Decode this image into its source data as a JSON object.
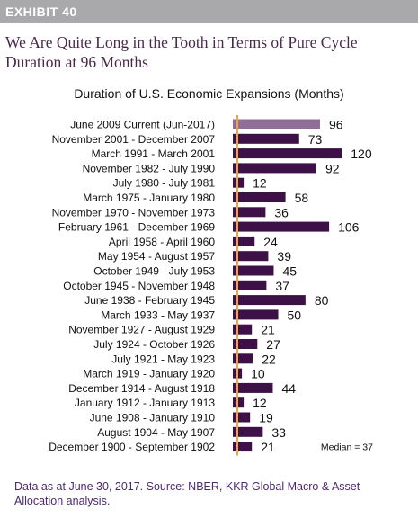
{
  "header": {
    "exhibit": "EXHIBIT 40",
    "headline": "We Are Quite Long in the Tooth in Terms of Pure Cycle Duration at 96 Months"
  },
  "chart_data": {
    "type": "bar",
    "orientation": "horizontal",
    "title": "Duration of U.S. Economic Expansions (Months)",
    "categories": [
      "June 2009 Current (Jun-2017)",
      "November 2001 - December 2007",
      "March 1991 - March 2001",
      "November 1982 - July 1990",
      "July 1980 - July 1981",
      "March 1975 - January 1980",
      "November 1970 - November 1973",
      "February 1961 - December 1969",
      "April 1958 - April 1960",
      "May 1954 - August 1957",
      "October 1949 - July 1953",
      "October 1945 - November 1948",
      "June 1938 - February 1945",
      "March 1933 - May 1937",
      "November 1927 - August 1929",
      "July 1924 - October 1926",
      "July 1921 - May 1923",
      "March 1919 - January 1920",
      "December 1914 - August 1918",
      "January 1912 - January 1913",
      "June 1908 - January 1910",
      "August 1904 - May 1907",
      "December 1900 - September 1902"
    ],
    "values": [
      96,
      73,
      120,
      92,
      12,
      58,
      36,
      106,
      24,
      39,
      45,
      37,
      80,
      50,
      21,
      27,
      22,
      10,
      44,
      12,
      19,
      33,
      21
    ],
    "data_labels": [
      "96",
      "73",
      "120",
      "92",
      "12",
      "58",
      "36",
      "106",
      "24",
      "39",
      "45",
      "37",
      "80",
      "50",
      "21",
      "27",
      "22",
      "10",
      "44",
      "12",
      "19",
      "33",
      "21"
    ],
    "highlight_index": 0,
    "median": 37,
    "median_label": "Median = 37",
    "xlim": [
      0,
      125
    ],
    "colors": {
      "bar": "#3d1048",
      "highlight_bar": "#8f6e97",
      "median_line": "#f2a33a"
    }
  },
  "footer": {
    "note": "Data as at June 30, 2017. Source: NBER, KKR Global Macro & Asset Allocation analysis."
  }
}
